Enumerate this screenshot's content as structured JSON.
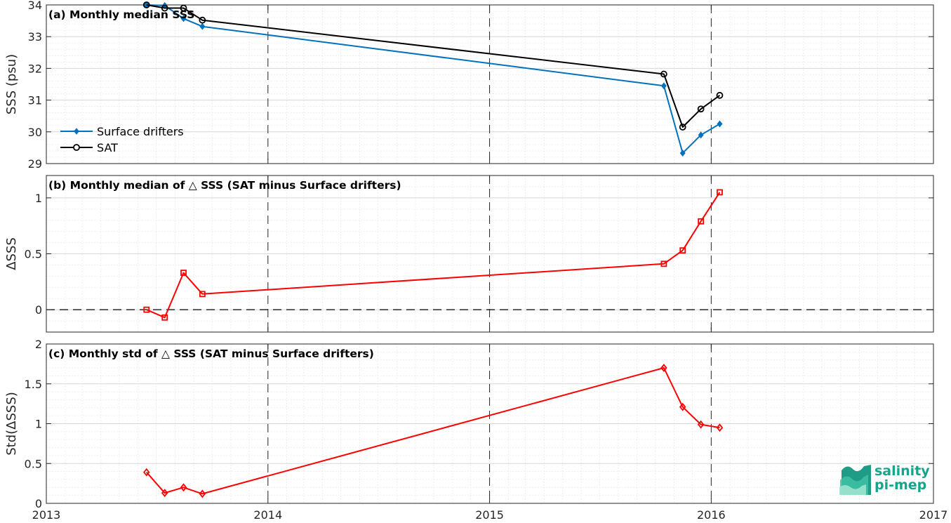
{
  "chart_data": [
    {
      "id": "a",
      "type": "line",
      "title": "(a) Monthly median SSS",
      "ylabel": "SSS (psu)",
      "xlim": [
        "2013-01-01",
        "2017-01-01"
      ],
      "ylim": [
        29,
        34
      ],
      "yticks": [
        "29",
        "30",
        "31",
        "32",
        "33",
        "34"
      ],
      "grid": true,
      "legend": {
        "placement": "bottom-left"
      },
      "series": [
        {
          "name": "Surface drifters",
          "color": "#0072BD",
          "marker": "diamond",
          "x": [
            "2013-06-15",
            "2013-07-15",
            "2013-08-15",
            "2013-09-15",
            "2015-10-15",
            "2015-11-15",
            "2015-12-15",
            "2016-01-15"
          ],
          "y": [
            34.0,
            33.98,
            33.57,
            33.32,
            31.45,
            29.33,
            29.9,
            30.25
          ]
        },
        {
          "name": "SAT",
          "color": "#000000",
          "marker": "circle",
          "x": [
            "2013-06-15",
            "2013-07-15",
            "2013-08-15",
            "2013-09-15",
            "2015-10-15",
            "2015-11-15",
            "2015-12-15",
            "2016-01-15"
          ],
          "y": [
            34.0,
            33.9,
            33.9,
            33.52,
            31.82,
            30.15,
            30.72,
            31.15
          ]
        }
      ]
    },
    {
      "id": "b",
      "type": "line",
      "title": "(b) Monthly median of △ SSS (SAT minus Surface drifters)",
      "ylabel": "ΔSSS",
      "xlim": [
        "2013-01-01",
        "2017-01-01"
      ],
      "ylim": [
        -0.2,
        1.2
      ],
      "yticks": [
        "0",
        "0.5",
        "1"
      ],
      "grid": true,
      "reference_line": 0,
      "series": [
        {
          "color": "#FF0000",
          "marker": "square",
          "x": [
            "2013-06-15",
            "2013-07-15",
            "2013-08-15",
            "2013-09-15",
            "2015-10-15",
            "2015-11-15",
            "2015-12-15",
            "2016-01-15"
          ],
          "y": [
            0.0,
            -0.07,
            0.33,
            0.14,
            0.41,
            0.53,
            0.79,
            1.05
          ]
        }
      ]
    },
    {
      "id": "c",
      "type": "line",
      "title": "(c) Monthly std of △ SSS (SAT minus Surface drifters)",
      "ylabel": "Std(ΔSSS)",
      "xlim": [
        "2013-01-01",
        "2017-01-01"
      ],
      "ylim": [
        0,
        2
      ],
      "yticks": [
        "0",
        "0.5",
        "1",
        "1.5",
        "2"
      ],
      "xticks": [
        "2013",
        "2014",
        "2015",
        "2016",
        "2017"
      ],
      "grid": true,
      "series": [
        {
          "color": "#FF0000",
          "marker": "diamond",
          "x": [
            "2013-06-15",
            "2013-07-15",
            "2013-08-15",
            "2013-09-15",
            "2015-10-15",
            "2015-11-15",
            "2015-12-15",
            "2016-01-15"
          ],
          "y": [
            0.39,
            0.13,
            0.2,
            0.12,
            1.7,
            1.21,
            0.99,
            0.95
          ]
        }
      ]
    }
  ],
  "logo": {
    "line1": "salinity",
    "line2": "pi-mep",
    "color": "#14a58a"
  }
}
